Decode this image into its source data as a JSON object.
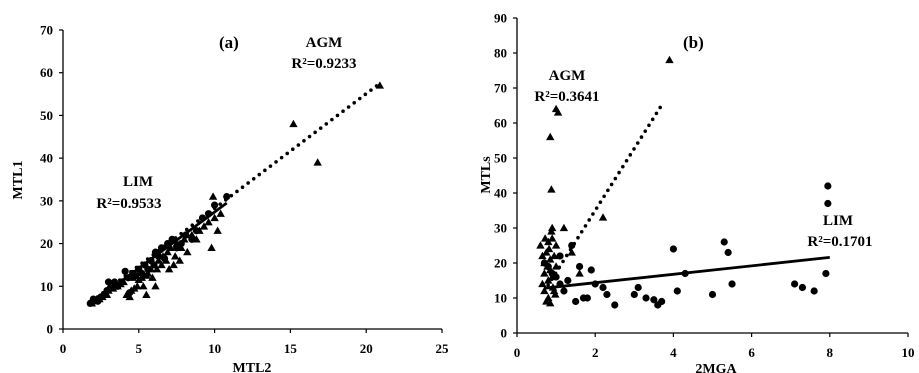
{
  "chart_data": [
    {
      "type": "scatter",
      "panel_label": "(a)",
      "xlabel": "MTL2",
      "ylabel": "MTL1",
      "xlim": [
        0,
        25
      ],
      "ylim": [
        0,
        70
      ],
      "xticks": [
        "0",
        "5",
        "10",
        "15",
        "20",
        "25"
      ],
      "yticks": [
        "0",
        "10",
        "20",
        "30",
        "40",
        "50",
        "60",
        "70"
      ],
      "grid": false,
      "annotations": [
        {
          "text": "AGM",
          "x": 17.2,
          "y": 64
        },
        {
          "text": "R²=0.9233",
          "x": 17.2,
          "y": 58
        },
        {
          "text": "LIM",
          "x": 4.9,
          "y": 31
        },
        {
          "text": "R²=0.9533",
          "x": 4.9,
          "y": 25
        }
      ],
      "series": [
        {
          "name": "AGM",
          "marker": "triangle",
          "points": [
            [
              1.9,
              6
            ],
            [
              2.1,
              6.5
            ],
            [
              2.4,
              7
            ],
            [
              2.6,
              7.5
            ],
            [
              2.9,
              8
            ],
            [
              3.0,
              9
            ],
            [
              3.3,
              9.5
            ],
            [
              3.6,
              10
            ],
            [
              3.8,
              10.5
            ],
            [
              4.0,
              11
            ],
            [
              4.2,
              8
            ],
            [
              4.4,
              7.5
            ],
            [
              4.5,
              9
            ],
            [
              4.7,
              9.5
            ],
            [
              4.9,
              10
            ],
            [
              5.0,
              11.5
            ],
            [
              5.2,
              12
            ],
            [
              5.3,
              10
            ],
            [
              5.5,
              12.5
            ],
            [
              5.6,
              13
            ],
            [
              5.8,
              14
            ],
            [
              5.9,
              12
            ],
            [
              6.0,
              15
            ],
            [
              6.2,
              14
            ],
            [
              6.3,
              16
            ],
            [
              6.5,
              15
            ],
            [
              6.6,
              17
            ],
            [
              6.8,
              16
            ],
            [
              6.9,
              18
            ],
            [
              7.0,
              14
            ],
            [
              7.1,
              19
            ],
            [
              7.3,
              15
            ],
            [
              7.4,
              17
            ],
            [
              7.5,
              20
            ],
            [
              7.7,
              16
            ],
            [
              7.8,
              19
            ],
            [
              8.0,
              21
            ],
            [
              8.2,
              18
            ],
            [
              8.5,
              22
            ],
            [
              8.8,
              21
            ],
            [
              9.0,
              23
            ],
            [
              9.3,
              24
            ],
            [
              9.6,
              25
            ],
            [
              9.8,
              19
            ],
            [
              10.0,
              26
            ],
            [
              10.2,
              23
            ],
            [
              10.4,
              27
            ],
            [
              9.9,
              31
            ],
            [
              15.2,
              48
            ],
            [
              16.8,
              39
            ],
            [
              20.9,
              57
            ],
            [
              5.5,
              8
            ],
            [
              4.6,
              12
            ],
            [
              6.1,
              10
            ]
          ]
        },
        {
          "name": "LIM",
          "marker": "circle",
          "points": [
            [
              1.8,
              6
            ],
            [
              2.0,
              7
            ],
            [
              2.3,
              6.5
            ],
            [
              2.5,
              7.5
            ],
            [
              2.7,
              8
            ],
            [
              2.9,
              9
            ],
            [
              3.1,
              9.5
            ],
            [
              3.2,
              10.5
            ],
            [
              3.4,
              11
            ],
            [
              3.6,
              10
            ],
            [
              3.9,
              11
            ],
            [
              4.1,
              13.5
            ],
            [
              4.3,
              12
            ],
            [
              4.6,
              13
            ],
            [
              4.8,
              12.5
            ],
            [
              5.0,
              14
            ],
            [
              5.2,
              13
            ],
            [
              5.4,
              15
            ],
            [
              5.6,
              14
            ],
            [
              5.8,
              16
            ],
            [
              6.0,
              15
            ],
            [
              6.1,
              18
            ],
            [
              6.3,
              17
            ],
            [
              6.5,
              19
            ],
            [
              6.7,
              16.5
            ],
            [
              6.9,
              20
            ],
            [
              7.2,
              21
            ],
            [
              7.5,
              19
            ],
            [
              7.8,
              20
            ],
            [
              8.1,
              22
            ],
            [
              8.5,
              21
            ],
            [
              8.8,
              23
            ],
            [
              9.2,
              26
            ],
            [
              9.6,
              27
            ],
            [
              10.0,
              29
            ],
            [
              10.8,
              31
            ],
            [
              3.0,
              11
            ],
            [
              4.4,
              8.5
            ]
          ]
        }
      ],
      "trendlines": [
        {
          "name": "AGM",
          "style": "dotted",
          "x": [
            1.9,
            20.9
          ],
          "y": [
            6.5,
            57.5
          ]
        },
        {
          "name": "LIM",
          "style": "solid",
          "x": [
            1.8,
            10.8
          ],
          "y": [
            5.8,
            29.5
          ]
        }
      ]
    },
    {
      "type": "scatter",
      "panel_label": "(b)",
      "xlabel": "2MGA",
      "ylabel": "MTLs",
      "xlim": [
        0,
        10
      ],
      "ylim": [
        0,
        90
      ],
      "xticks": [
        "0",
        "2",
        "4",
        "6",
        "8",
        "10"
      ],
      "yticks": [
        "0",
        "10",
        "20",
        "30",
        "40",
        "50",
        "60",
        "70",
        "80",
        "90"
      ],
      "grid": false,
      "annotations": [
        {
          "text": "AGM",
          "x": 1.6,
          "y": 72
        },
        {
          "text": "R²=0.3641",
          "x": 1.6,
          "y": 65
        },
        {
          "text": "LIM",
          "x": 8.1,
          "y": 30
        },
        {
          "text": "R²=0.1701",
          "x": 8.1,
          "y": 24
        }
      ],
      "series": [
        {
          "name": "AGM",
          "marker": "triangle",
          "points": [
            [
              0.6,
              25
            ],
            [
              0.65,
              22
            ],
            [
              0.7,
              20
            ],
            [
              0.7,
              17
            ],
            [
              0.72,
              27
            ],
            [
              0.75,
              23
            ],
            [
              0.78,
              19
            ],
            [
              0.8,
              15
            ],
            [
              0.8,
              26
            ],
            [
              0.82,
              24
            ],
            [
              0.85,
              21
            ],
            [
              0.85,
              18
            ],
            [
              0.88,
              29
            ],
            [
              0.9,
              30
            ],
            [
              0.9,
              16
            ],
            [
              0.92,
              13
            ],
            [
              0.95,
              12
            ],
            [
              0.95,
              22
            ],
            [
              0.98,
              11
            ],
            [
              1.0,
              25
            ],
            [
              1.0,
              19
            ],
            [
              0.7,
              12
            ],
            [
              0.75,
              9
            ],
            [
              0.8,
              10
            ],
            [
              0.85,
              8.5
            ],
            [
              0.88,
              41
            ],
            [
              0.85,
              56
            ],
            [
              1.0,
              64
            ],
            [
              1.05,
              63
            ],
            [
              1.2,
              30
            ],
            [
              1.4,
              23
            ],
            [
              1.6,
              17
            ],
            [
              2.2,
              33
            ],
            [
              3.9,
              78
            ],
            [
              0.65,
              14
            ],
            [
              0.9,
              27
            ]
          ]
        },
        {
          "name": "LIM",
          "marker": "circle",
          "points": [
            [
              0.7,
              20
            ],
            [
              0.8,
              19
            ],
            [
              0.9,
              17
            ],
            [
              1.0,
              16
            ],
            [
              1.1,
              14
            ],
            [
              1.1,
              22
            ],
            [
              1.2,
              12
            ],
            [
              1.3,
              15
            ],
            [
              1.4,
              25
            ],
            [
              1.5,
              9
            ],
            [
              1.6,
              19
            ],
            [
              1.7,
              10
            ],
            [
              1.8,
              10
            ],
            [
              1.9,
              18
            ],
            [
              2.0,
              14
            ],
            [
              2.2,
              13
            ],
            [
              2.3,
              11
            ],
            [
              2.5,
              8
            ],
            [
              3.0,
              11
            ],
            [
              3.1,
              13
            ],
            [
              3.3,
              10
            ],
            [
              3.5,
              9.5
            ],
            [
              3.6,
              8
            ],
            [
              3.7,
              9
            ],
            [
              4.0,
              24
            ],
            [
              4.1,
              12
            ],
            [
              4.3,
              17
            ],
            [
              5.0,
              11
            ],
            [
              5.3,
              26
            ],
            [
              5.5,
              14
            ],
            [
              5.4,
              23
            ],
            [
              7.1,
              14
            ],
            [
              7.3,
              13
            ],
            [
              7.6,
              12
            ],
            [
              7.9,
              17
            ],
            [
              7.95,
              42
            ],
            [
              7.95,
              37
            ]
          ]
        }
      ],
      "trendlines": [
        {
          "name": "AGM",
          "style": "dotted",
          "x": [
            0.7,
            3.75
          ],
          "y": [
            12,
            66
          ]
        },
        {
          "name": "LIM",
          "style": "solid",
          "x": [
            0.7,
            8.0
          ],
          "y": [
            12.8,
            21.6
          ]
        }
      ]
    }
  ]
}
